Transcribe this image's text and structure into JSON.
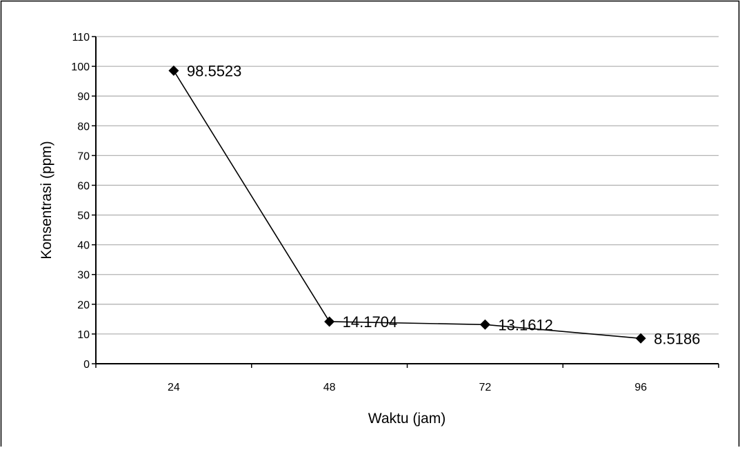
{
  "chart_data": {
    "type": "line",
    "categories": [
      "24",
      "48",
      "72",
      "96"
    ],
    "series": [
      {
        "values": [
          98.5523,
          14.1704,
          13.1612,
          8.5186
        ],
        "labels": [
          "98.5523",
          "14.1704",
          "13.1612",
          "8.5186"
        ]
      }
    ],
    "xlabel": "Waktu (jam)",
    "ylabel": "Konsentrasi (ppm)",
    "ylim": [
      0,
      110
    ],
    "yticks": [
      "0",
      "10",
      "20",
      "30",
      "40",
      "50",
      "60",
      "70",
      "80",
      "90",
      "100",
      "110"
    ],
    "grid": true,
    "legend": "none",
    "marker": "diamond",
    "colors": {
      "line": "#000000",
      "marker": "#000000",
      "grid": "#b3b3b3",
      "axis": "#000000",
      "frame": "#000000"
    }
  }
}
